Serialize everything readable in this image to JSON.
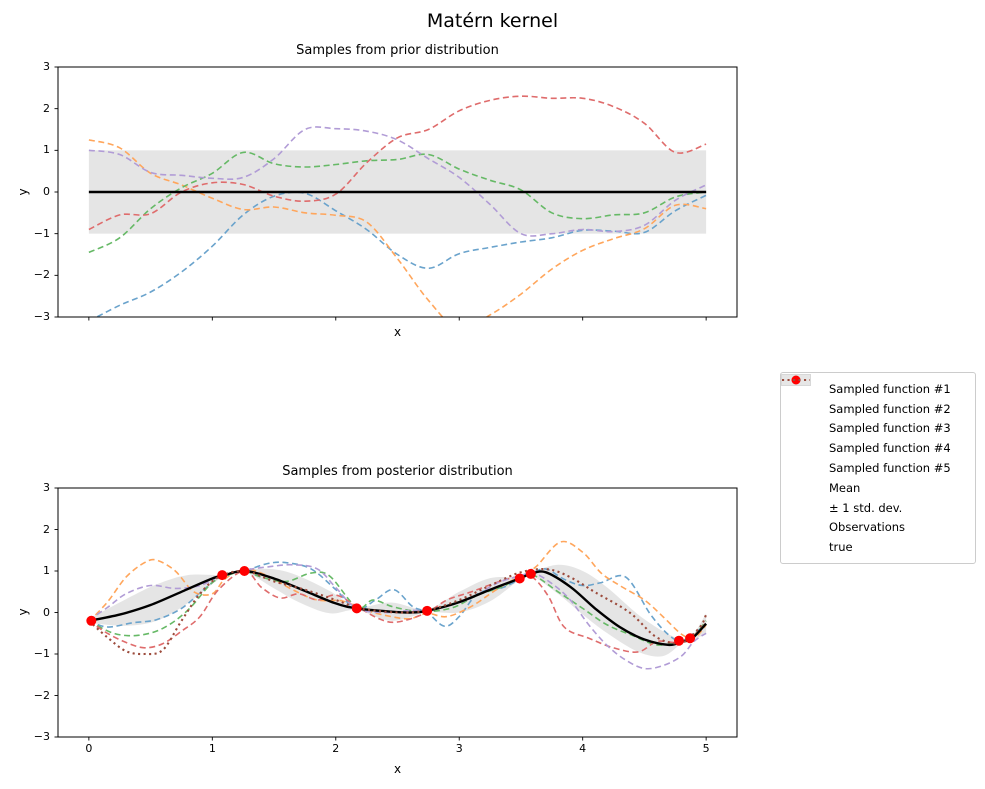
{
  "figure_title": "Matérn kernel",
  "colors": {
    "sample1": "#6AA3CC",
    "sample2": "#FFA65C",
    "sample3": "#66B966",
    "sample4": "#DF6C6C",
    "sample5": "#B19CD6",
    "mean": "#000000",
    "band_fill": "rgba(0,0,0,0.10)",
    "band_legend": "#E6E6E6",
    "observations": "#FF0000",
    "true_line": "#9C4B3C",
    "axes_frame": "#000000",
    "legend_border": "#CCCCCC"
  },
  "chart_data": [
    {
      "type": "line",
      "title": "Samples from prior distribution",
      "xlabel": "x",
      "ylabel": "y",
      "xlim": [
        -0.25,
        5.25
      ],
      "ylim": [
        -3,
        3
      ],
      "xticks": [
        0,
        1,
        2,
        3,
        4,
        5
      ],
      "xtick_labels": [],
      "yticks": [
        3,
        2,
        1,
        0,
        -1,
        -2,
        -3
      ],
      "ytick_labels": [
        "3",
        "2",
        "1",
        "0",
        "−1",
        "−2",
        "−3"
      ],
      "grid": false,
      "mean_line": {
        "y": 0,
        "x_start": 0,
        "x_end": 5
      },
      "band": {
        "x_start": 0,
        "x_end": 5,
        "lo": -1,
        "hi": 1,
        "label": "± 1 std. dev."
      },
      "series_x": [
        0,
        0.25,
        0.5,
        0.75,
        1,
        1.25,
        1.5,
        1.75,
        2,
        2.25,
        2.5,
        2.75,
        3,
        3.25,
        3.5,
        3.75,
        4,
        4.25,
        4.5,
        4.75,
        5
      ],
      "series": [
        {
          "name": "Sampled function #1",
          "color": "#6AA3CC",
          "y": [
            -3.1,
            -2.72,
            -2.4,
            -1.92,
            -1.3,
            -0.55,
            -0.1,
            -0.03,
            -0.45,
            -0.9,
            -1.5,
            -1.83,
            -1.48,
            -1.33,
            -1.2,
            -1.1,
            -0.92,
            -0.94,
            -0.97,
            -0.45,
            -0.08
          ]
        },
        {
          "name": "Sampled function #2",
          "color": "#FFA65C",
          "y": [
            1.25,
            1.06,
            0.45,
            0.17,
            -0.15,
            -0.42,
            -0.36,
            -0.5,
            -0.56,
            -0.72,
            -1.6,
            -2.6,
            -3.3,
            -2.95,
            -2.45,
            -1.85,
            -1.4,
            -1.12,
            -0.88,
            -0.32,
            -0.4
          ]
        },
        {
          "name": "Sampled function #3",
          "color": "#66B966",
          "y": [
            -1.45,
            -1.1,
            -0.4,
            0.1,
            0.45,
            0.95,
            0.68,
            0.6,
            0.66,
            0.75,
            0.78,
            0.9,
            0.55,
            0.28,
            0.05,
            -0.5,
            -0.64,
            -0.55,
            -0.5,
            -0.12,
            0
          ]
        },
        {
          "name": "Sampled function #4",
          "color": "#DF6C6C",
          "y": [
            -0.9,
            -0.55,
            -0.52,
            0,
            0.22,
            0.18,
            -0.1,
            -0.22,
            -0.05,
            0.7,
            1.3,
            1.5,
            1.95,
            2.2,
            2.3,
            2.25,
            2.25,
            2.05,
            1.65,
            0.95,
            1.15
          ]
        },
        {
          "name": "Sampled function #5",
          "color": "#B19CD6",
          "y": [
            1,
            0.9,
            0.47,
            0.4,
            0.33,
            0.35,
            0.8,
            1.5,
            1.52,
            1.46,
            1.25,
            0.8,
            0.35,
            -0.3,
            -1,
            -1,
            -0.9,
            -0.95,
            -0.8,
            -0.2,
            0.17
          ]
        }
      ]
    },
    {
      "type": "line",
      "title": "Samples from posterior distribution",
      "xlabel": "x",
      "ylabel": "y",
      "xlim": [
        -0.25,
        5.25
      ],
      "ylim": [
        -3,
        3
      ],
      "xticks": [
        0,
        1,
        2,
        3,
        4,
        5
      ],
      "xtick_labels": [
        "0",
        "1",
        "2",
        "3",
        "4",
        "5"
      ],
      "yticks": [
        3,
        2,
        1,
        0,
        -1,
        -2,
        -3
      ],
      "ytick_labels": [
        "3",
        "2",
        "1",
        "0",
        "−1",
        "−2",
        "−3"
      ],
      "grid": false,
      "mean_curve": {
        "x": [
          0,
          0.25,
          0.5,
          0.75,
          1,
          1.08,
          1.26,
          1.5,
          1.75,
          2,
          2.17,
          2.45,
          2.6,
          2.74,
          3,
          3.25,
          3.49,
          3.58,
          3.7,
          3.9,
          4.1,
          4.3,
          4.5,
          4.7,
          4.8,
          4.88,
          5
        ],
        "y": [
          -0.2,
          -0.05,
          0.18,
          0.5,
          0.82,
          0.88,
          1,
          0.82,
          0.52,
          0.22,
          0.1,
          0.02,
          0,
          0.04,
          0.25,
          0.55,
          0.82,
          0.93,
          0.97,
          0.62,
          0.1,
          -0.35,
          -0.65,
          -0.78,
          -0.7,
          -0.64,
          -0.27
        ]
      },
      "band_curve": {
        "x": [
          0,
          0.3,
          0.55,
          0.8,
          1.08,
          1.26,
          1.5,
          1.7,
          1.95,
          2.17,
          2.45,
          2.74,
          3,
          3.25,
          3.49,
          3.58,
          3.8,
          4,
          4.2,
          4.45,
          4.65,
          4.8,
          4.88,
          5
        ],
        "lo": [
          -0.25,
          -0.32,
          -0.2,
          0.22,
          0.85,
          0.97,
          0.58,
          0.25,
          -0.02,
          0.06,
          -0.2,
          0,
          0,
          0.27,
          0.79,
          0.9,
          0.45,
          -0.05,
          -0.5,
          -0.95,
          -1.05,
          -0.75,
          -0.67,
          -0.52
        ],
        "hi": [
          -0.15,
          0.32,
          0.68,
          0.9,
          0.91,
          1.03,
          1.04,
          0.88,
          0.52,
          0.14,
          0.24,
          0.08,
          0.5,
          0.83,
          0.85,
          0.96,
          1.15,
          1,
          0.6,
          -0.05,
          -0.45,
          -0.65,
          -0.61,
          -0.02
        ]
      },
      "observations": {
        "x": [
          0.02,
          1.08,
          1.26,
          2.17,
          2.74,
          3.49,
          3.58,
          4.78,
          4.87
        ],
        "y": [
          -0.2,
          0.9,
          1,
          0.1,
          0.04,
          0.82,
          0.93,
          -0.68,
          -0.62
        ]
      },
      "true_curve": {
        "name": "true",
        "x": [
          0,
          0.15,
          0.3,
          0.45,
          0.6,
          0.75,
          0.9,
          1.05,
          1.26,
          1.5,
          1.75,
          2,
          2.2,
          2.5,
          2.74,
          3,
          3.25,
          3.5,
          3.72,
          3.9,
          4.1,
          4.38,
          4.6,
          4.8,
          4.95,
          5
        ],
        "y": [
          -0.2,
          -0.6,
          -0.93,
          -1,
          -0.9,
          -0.2,
          0.45,
          0.85,
          1,
          0.75,
          0.55,
          0.3,
          0.1,
          0,
          0.05,
          0.3,
          0.65,
          0.97,
          1.04,
          0.85,
          0.49,
          0,
          -0.6,
          -0.73,
          -0.35,
          -0.05
        ]
      },
      "series": [
        {
          "name": "Sampled function #1",
          "color": "#6AA3CC",
          "x": [
            0,
            0.15,
            0.35,
            0.55,
            0.75,
            0.95,
            1.08,
            1.26,
            1.45,
            1.6,
            1.8,
            2,
            2.17,
            2.32,
            2.47,
            2.62,
            2.74,
            2.88,
            3,
            3.15,
            3.35,
            3.49,
            3.58,
            3.7,
            3.85,
            4,
            4.15,
            4.35,
            4.55,
            4.7,
            4.8,
            4.9,
            5
          ],
          "y": [
            -0.2,
            -0.35,
            -0.25,
            -0.17,
            0.1,
            0.6,
            0.88,
            1,
            1.18,
            1.2,
            1.05,
            0.55,
            0.07,
            0.3,
            0.55,
            0.15,
            0,
            -0.33,
            -0.1,
            0.45,
            0.6,
            0.8,
            0.93,
            1.05,
            0.8,
            0.65,
            0.72,
            0.85,
            -0.05,
            -0.55,
            -0.68,
            -0.5,
            -0.3
          ]
        },
        {
          "name": "Sampled function #2",
          "color": "#FFA65C",
          "x": [
            0,
            0.15,
            0.3,
            0.45,
            0.55,
            0.7,
            0.85,
            1,
            1.1,
            1.26,
            1.45,
            1.65,
            1.85,
            2.05,
            2.25,
            2.45,
            2.6,
            2.74,
            2.9,
            3.1,
            3.3,
            3.49,
            3.62,
            3.82,
            4,
            4.15,
            4.3,
            4.5,
            4.65,
            4.8,
            4.9,
            5
          ],
          "y": [
            -0.22,
            0.25,
            0.85,
            1.2,
            1.26,
            1,
            0.5,
            0.45,
            0.8,
            1.05,
            0.88,
            0.55,
            0.3,
            0.28,
            0.05,
            -0.1,
            -0.15,
            -0.02,
            -0.1,
            0.15,
            0.55,
            0.88,
            1.1,
            1.7,
            1.45,
            0.95,
            0.65,
            0.3,
            -0.1,
            -0.52,
            -0.62,
            -0.3
          ]
        },
        {
          "name": "Sampled function #3",
          "color": "#66B966",
          "x": [
            0,
            0.2,
            0.4,
            0.6,
            0.8,
            1,
            1.15,
            1.26,
            1.4,
            1.6,
            1.8,
            1.95,
            2.17,
            2.3,
            2.45,
            2.6,
            2.74,
            2.95,
            3.15,
            3.35,
            3.49,
            3.6,
            3.8,
            4,
            4.2,
            4.4,
            4.6,
            4.78,
            4.9,
            5
          ],
          "y": [
            -0.2,
            -0.5,
            -0.55,
            -0.38,
            0.05,
            0.72,
            0.92,
            1,
            0.85,
            0.75,
            0.95,
            0.88,
            0.12,
            0.3,
            0.15,
            0.05,
            0.02,
            0.12,
            0.42,
            0.62,
            0.85,
            0.9,
            0.5,
            0.1,
            -0.3,
            -0.55,
            -0.78,
            -0.7,
            -0.55,
            -0.2
          ]
        },
        {
          "name": "Sampled function #4",
          "color": "#DF6C6C",
          "x": [
            0,
            0.15,
            0.3,
            0.45,
            0.6,
            0.75,
            0.9,
            1.05,
            1.26,
            1.4,
            1.55,
            1.7,
            1.85,
            2,
            2.17,
            2.35,
            2.5,
            2.74,
            2.9,
            3.1,
            3.3,
            3.45,
            3.58,
            3.72,
            3.85,
            4.05,
            4.25,
            4.45,
            4.6,
            4.75,
            4.87,
            5
          ],
          "y": [
            -0.2,
            -0.5,
            -0.72,
            -0.85,
            -0.75,
            -0.45,
            -0.1,
            0.55,
            1,
            0.6,
            0.35,
            0.45,
            0.3,
            0.42,
            0.15,
            -0.15,
            -0.23,
            0,
            0.3,
            0.5,
            0.72,
            0.85,
            0.88,
            0.4,
            -0.35,
            -0.62,
            -0.85,
            -0.95,
            -0.7,
            -0.72,
            -0.63,
            -0.25
          ]
        },
        {
          "name": "Sampled function #5",
          "color": "#B19CD6",
          "x": [
            0,
            0.15,
            0.3,
            0.5,
            0.7,
            0.9,
            1.08,
            1.26,
            1.45,
            1.65,
            1.85,
            2,
            2.17,
            2.4,
            2.6,
            2.74,
            2.9,
            3.1,
            3.3,
            3.49,
            3.6,
            3.75,
            3.9,
            4.05,
            4.2,
            4.35,
            4.5,
            4.65,
            4.8,
            4.9,
            5
          ],
          "y": [
            -0.18,
            0.12,
            0.45,
            0.65,
            0.58,
            0.65,
            0.9,
            1.02,
            1.1,
            1.15,
            1.05,
            0.6,
            0.1,
            0,
            0.05,
            0.05,
            0.15,
            0.35,
            0.7,
            0.88,
            0.95,
            0.7,
            0.3,
            -0.3,
            -0.8,
            -1.15,
            -1.35,
            -1.28,
            -1.05,
            -0.7,
            -0.5
          ]
        }
      ]
    }
  ],
  "legend": {
    "items": [
      {
        "label": "Sampled function #1",
        "swatch": "dash",
        "color": "#6AA3CC"
      },
      {
        "label": "Sampled function #2",
        "swatch": "dash",
        "color": "#FFA65C"
      },
      {
        "label": "Sampled function #3",
        "swatch": "dash",
        "color": "#66B966"
      },
      {
        "label": "Sampled function #4",
        "swatch": "dash",
        "color": "#DF6C6C"
      },
      {
        "label": "Sampled function #5",
        "swatch": "dash",
        "color": "#B19CD6"
      },
      {
        "label": "Mean",
        "swatch": "solid",
        "color": "#000000"
      },
      {
        "label": "± 1 std. dev.",
        "swatch": "patch",
        "color": "#E6E6E6"
      },
      {
        "label": "Observations",
        "swatch": "dot",
        "color": "#FF0000"
      },
      {
        "label": "true",
        "swatch": "dotted",
        "color": "#9C4B3C"
      }
    ]
  }
}
